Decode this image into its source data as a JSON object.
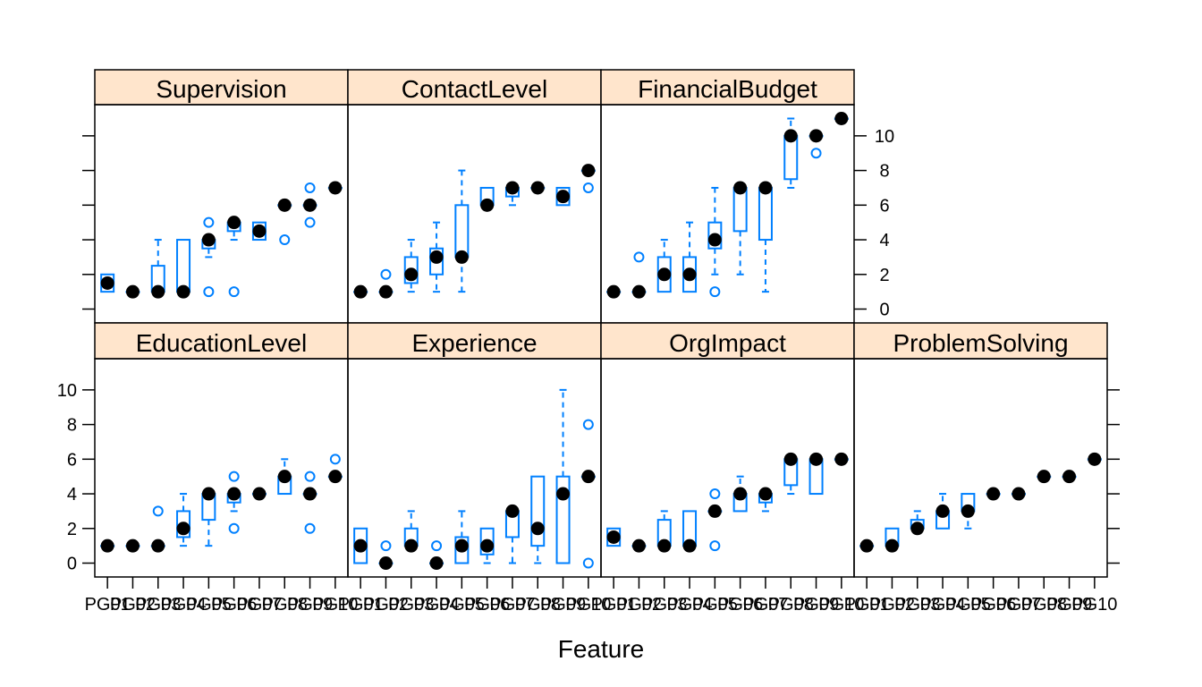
{
  "chart_data": {
    "type": "boxplot",
    "xlabel": "Feature",
    "ylabel": "",
    "ylim": [
      -0.8,
      11.8
    ],
    "yticks": [
      0,
      2,
      4,
      6,
      8,
      10
    ],
    "colors": {
      "box": "#0080FF",
      "median": "#000000",
      "strip": "#FFE5CC",
      "frame": "#000000"
    },
    "groups": [
      "PG01",
      "PG02",
      "PG03",
      "PG04",
      "PG05",
      "PG06",
      "PG07",
      "PG08",
      "PG09",
      "PG10"
    ],
    "panels": [
      {
        "name": "Supervision",
        "row": 1,
        "col": 0,
        "boxes": [
          {
            "group": "PG01",
            "q1": 1,
            "med": 1.5,
            "q3": 2,
            "lo": 1,
            "hi": 2,
            "out": []
          },
          {
            "group": "PG02",
            "q1": 1,
            "med": 1,
            "q3": 1,
            "lo": 1,
            "hi": 1,
            "out": []
          },
          {
            "group": "PG03",
            "q1": 1,
            "med": 1,
            "q3": 2.5,
            "lo": 1,
            "hi": 4,
            "out": []
          },
          {
            "group": "PG04",
            "q1": 1,
            "med": 1,
            "q3": 4,
            "lo": 1,
            "hi": 4,
            "out": []
          },
          {
            "group": "PG05",
            "q1": 3.5,
            "med": 4,
            "q3": 4,
            "lo": 3,
            "hi": 4,
            "out": [
              5,
              1
            ]
          },
          {
            "group": "PG06",
            "q1": 4.5,
            "med": 5,
            "q3": 5,
            "lo": 4,
            "hi": 5,
            "out": [
              1
            ]
          },
          {
            "group": "PG07",
            "q1": 4,
            "med": 4.5,
            "q3": 5,
            "lo": 4,
            "hi": 5,
            "out": []
          },
          {
            "group": "PG08",
            "q1": 6,
            "med": 6,
            "q3": 6,
            "lo": 6,
            "hi": 6,
            "out": [
              4
            ]
          },
          {
            "group": "PG09",
            "q1": 6,
            "med": 6,
            "q3": 6,
            "lo": 6,
            "hi": 6,
            "out": [
              7,
              5
            ]
          },
          {
            "group": "PG10",
            "q1": 7,
            "med": 7,
            "q3": 7,
            "lo": 7,
            "hi": 7,
            "out": []
          }
        ]
      },
      {
        "name": "ContactLevel",
        "row": 1,
        "col": 1,
        "boxes": [
          {
            "group": "PG01",
            "q1": 1,
            "med": 1,
            "q3": 1,
            "lo": 1,
            "hi": 1,
            "out": []
          },
          {
            "group": "PG02",
            "q1": 1,
            "med": 1,
            "q3": 1,
            "lo": 1,
            "hi": 1,
            "out": [
              2
            ]
          },
          {
            "group": "PG03",
            "q1": 1.5,
            "med": 2,
            "q3": 3,
            "lo": 1,
            "hi": 4,
            "out": []
          },
          {
            "group": "PG04",
            "q1": 2,
            "med": 3,
            "q3": 3.5,
            "lo": 1,
            "hi": 5,
            "out": []
          },
          {
            "group": "PG05",
            "q1": 3,
            "med": 3,
            "q3": 6,
            "lo": 1,
            "hi": 8,
            "out": []
          },
          {
            "group": "PG06",
            "q1": 6,
            "med": 6,
            "q3": 7,
            "lo": 6,
            "hi": 7,
            "out": []
          },
          {
            "group": "PG07",
            "q1": 6.5,
            "med": 7,
            "q3": 7,
            "lo": 6,
            "hi": 7,
            "out": []
          },
          {
            "group": "PG08",
            "q1": 7,
            "med": 7,
            "q3": 7,
            "lo": 7,
            "hi": 7,
            "out": []
          },
          {
            "group": "PG09",
            "q1": 6,
            "med": 6.5,
            "q3": 7,
            "lo": 6,
            "hi": 7,
            "out": []
          },
          {
            "group": "PG10",
            "q1": 8,
            "med": 8,
            "q3": 8,
            "lo": 8,
            "hi": 8,
            "out": [
              7
            ]
          }
        ]
      },
      {
        "name": "FinancialBudget",
        "row": 1,
        "col": 2,
        "boxes": [
          {
            "group": "PG01",
            "q1": 1,
            "med": 1,
            "q3": 1,
            "lo": 1,
            "hi": 1,
            "out": []
          },
          {
            "group": "PG02",
            "q1": 1,
            "med": 1,
            "q3": 1,
            "lo": 1,
            "hi": 1,
            "out": [
              3
            ]
          },
          {
            "group": "PG03",
            "q1": 1,
            "med": 2,
            "q3": 3,
            "lo": 1,
            "hi": 4,
            "out": []
          },
          {
            "group": "PG04",
            "q1": 1,
            "med": 2,
            "q3": 3,
            "lo": 1,
            "hi": 5,
            "out": []
          },
          {
            "group": "PG05",
            "q1": 3.5,
            "med": 4,
            "q3": 5,
            "lo": 2,
            "hi": 7,
            "out": [
              1
            ]
          },
          {
            "group": "PG06",
            "q1": 4.5,
            "med": 7,
            "q3": 7,
            "lo": 2,
            "hi": 7,
            "out": []
          },
          {
            "group": "PG07",
            "q1": 4,
            "med": 7,
            "q3": 7,
            "lo": 1,
            "hi": 7,
            "out": []
          },
          {
            "group": "PG08",
            "q1": 7.5,
            "med": 10,
            "q3": 10,
            "lo": 7,
            "hi": 11,
            "out": []
          },
          {
            "group": "PG09",
            "q1": 10,
            "med": 10,
            "q3": 10,
            "lo": 10,
            "hi": 10,
            "out": [
              9
            ]
          },
          {
            "group": "PG10",
            "q1": 11,
            "med": 11,
            "q3": 11,
            "lo": 11,
            "hi": 11,
            "out": []
          }
        ]
      },
      {
        "name": "EducationLevel",
        "row": 0,
        "col": 0,
        "boxes": [
          {
            "group": "PG01",
            "q1": 1,
            "med": 1,
            "q3": 1,
            "lo": 1,
            "hi": 1,
            "out": []
          },
          {
            "group": "PG02",
            "q1": 1,
            "med": 1,
            "q3": 1,
            "lo": 1,
            "hi": 1,
            "out": []
          },
          {
            "group": "PG03",
            "q1": 1,
            "med": 1,
            "q3": 1,
            "lo": 1,
            "hi": 1,
            "out": [
              3
            ]
          },
          {
            "group": "PG04",
            "q1": 1.5,
            "med": 2,
            "q3": 3,
            "lo": 1,
            "hi": 4,
            "out": []
          },
          {
            "group": "PG05",
            "q1": 2.5,
            "med": 4,
            "q3": 4,
            "lo": 1,
            "hi": 4,
            "out": []
          },
          {
            "group": "PG06",
            "q1": 3.5,
            "med": 4,
            "q3": 4,
            "lo": 3,
            "hi": 4,
            "out": [
              5,
              2
            ]
          },
          {
            "group": "PG07",
            "q1": 4,
            "med": 4,
            "q3": 4,
            "lo": 4,
            "hi": 4,
            "out": []
          },
          {
            "group": "PG08",
            "q1": 4,
            "med": 5,
            "q3": 5,
            "lo": 4,
            "hi": 6,
            "out": []
          },
          {
            "group": "PG09",
            "q1": 4,
            "med": 4,
            "q3": 4,
            "lo": 4,
            "hi": 4,
            "out": [
              5,
              2
            ]
          },
          {
            "group": "PG10",
            "q1": 5,
            "med": 5,
            "q3": 5,
            "lo": 5,
            "hi": 5,
            "out": [
              6
            ]
          }
        ]
      },
      {
        "name": "Experience",
        "row": 0,
        "col": 1,
        "boxes": [
          {
            "group": "PG01",
            "q1": 0,
            "med": 1,
            "q3": 2,
            "lo": 0,
            "hi": 2,
            "out": []
          },
          {
            "group": "PG02",
            "q1": 0,
            "med": 0,
            "q3": 0,
            "lo": 0,
            "hi": 0,
            "out": [
              1
            ]
          },
          {
            "group": "PG03",
            "q1": 1,
            "med": 1,
            "q3": 2,
            "lo": 1,
            "hi": 3,
            "out": []
          },
          {
            "group": "PG04",
            "q1": 0,
            "med": 0,
            "q3": 0,
            "lo": 0,
            "hi": 0,
            "out": [
              1
            ]
          },
          {
            "group": "PG05",
            "q1": 0,
            "med": 1,
            "q3": 1.5,
            "lo": 0,
            "hi": 3,
            "out": []
          },
          {
            "group": "PG06",
            "q1": 0.5,
            "med": 1,
            "q3": 2,
            "lo": 0,
            "hi": 2,
            "out": []
          },
          {
            "group": "PG07",
            "q1": 1.5,
            "med": 3,
            "q3": 3,
            "lo": 0,
            "hi": 3,
            "out": []
          },
          {
            "group": "PG08",
            "q1": 1,
            "med": 2,
            "q3": 5,
            "lo": 0,
            "hi": 5,
            "out": []
          },
          {
            "group": "PG09",
            "q1": 0,
            "med": 4,
            "q3": 5,
            "lo": 0,
            "hi": 10,
            "out": []
          },
          {
            "group": "PG10",
            "q1": 5,
            "med": 5,
            "q3": 5,
            "lo": 5,
            "hi": 5,
            "out": [
              8,
              0
            ]
          }
        ]
      },
      {
        "name": "OrgImpact",
        "row": 0,
        "col": 2,
        "boxes": [
          {
            "group": "PG01",
            "q1": 1,
            "med": 1.5,
            "q3": 2,
            "lo": 1,
            "hi": 2,
            "out": []
          },
          {
            "group": "PG02",
            "q1": 1,
            "med": 1,
            "q3": 1,
            "lo": 1,
            "hi": 1,
            "out": []
          },
          {
            "group": "PG03",
            "q1": 1,
            "med": 1,
            "q3": 2.5,
            "lo": 1,
            "hi": 3,
            "out": []
          },
          {
            "group": "PG04",
            "q1": 1,
            "med": 1,
            "q3": 3,
            "lo": 1,
            "hi": 3,
            "out": []
          },
          {
            "group": "PG05",
            "q1": 3,
            "med": 3,
            "q3": 3,
            "lo": 3,
            "hi": 3,
            "out": [
              4,
              1
            ]
          },
          {
            "group": "PG06",
            "q1": 3,
            "med": 4,
            "q3": 4,
            "lo": 3,
            "hi": 5,
            "out": []
          },
          {
            "group": "PG07",
            "q1": 3.5,
            "med": 4,
            "q3": 4,
            "lo": 3,
            "hi": 4,
            "out": []
          },
          {
            "group": "PG08",
            "q1": 4.5,
            "med": 6,
            "q3": 6,
            "lo": 4,
            "hi": 6,
            "out": []
          },
          {
            "group": "PG09",
            "q1": 4,
            "med": 6,
            "q3": 6,
            "lo": 4,
            "hi": 6,
            "out": []
          },
          {
            "group": "PG10",
            "q1": 6,
            "med": 6,
            "q3": 6,
            "lo": 6,
            "hi": 6,
            "out": []
          }
        ]
      },
      {
        "name": "ProblemSolving",
        "row": 0,
        "col": 3,
        "boxes": [
          {
            "group": "PG01",
            "q1": 1,
            "med": 1,
            "q3": 1,
            "lo": 1,
            "hi": 1,
            "out": []
          },
          {
            "group": "PG02",
            "q1": 1,
            "med": 1,
            "q3": 2,
            "lo": 1,
            "hi": 2,
            "out": []
          },
          {
            "group": "PG03",
            "q1": 2,
            "med": 2,
            "q3": 2.5,
            "lo": 2,
            "hi": 3,
            "out": []
          },
          {
            "group": "PG04",
            "q1": 2,
            "med": 3,
            "q3": 3,
            "lo": 2,
            "hi": 4,
            "out": []
          },
          {
            "group": "PG05",
            "q1": 3,
            "med": 3,
            "q3": 4,
            "lo": 2,
            "hi": 4,
            "out": []
          },
          {
            "group": "PG06",
            "q1": 4,
            "med": 4,
            "q3": 4,
            "lo": 4,
            "hi": 4,
            "out": []
          },
          {
            "group": "PG07",
            "q1": 4,
            "med": 4,
            "q3": 4,
            "lo": 4,
            "hi": 4,
            "out": []
          },
          {
            "group": "PG08",
            "q1": 5,
            "med": 5,
            "q3": 5,
            "lo": 5,
            "hi": 5,
            "out": []
          },
          {
            "group": "PG09",
            "q1": 5,
            "med": 5,
            "q3": 5,
            "lo": 5,
            "hi": 5,
            "out": []
          },
          {
            "group": "PG10",
            "q1": 6,
            "med": 6,
            "q3": 6,
            "lo": 6,
            "hi": 6,
            "out": []
          }
        ]
      }
    ]
  }
}
